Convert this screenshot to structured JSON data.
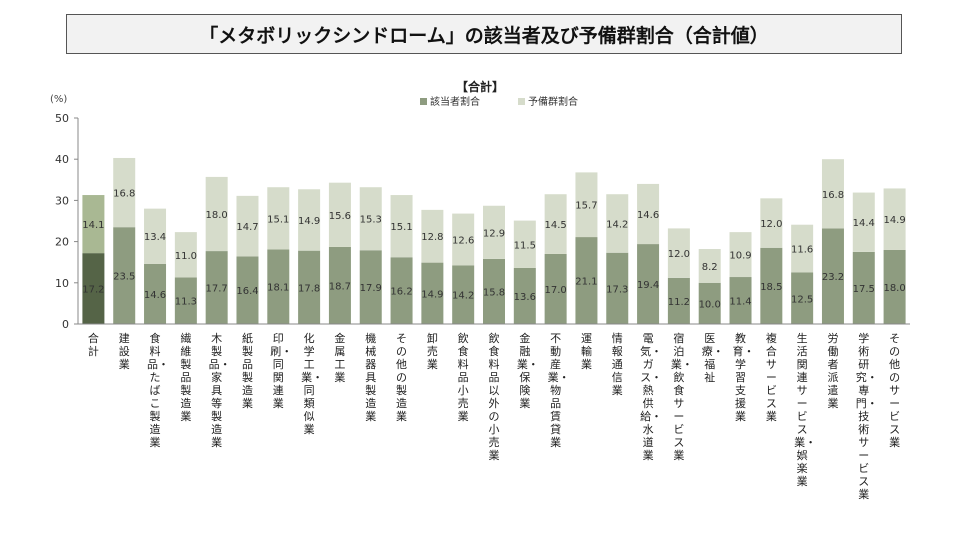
{
  "slide_title": "「メタボリックシンドローム」の該当者及び予備群割合（合計値）",
  "chart_data": {
    "type": "bar",
    "stacked": true,
    "title": "【合計】",
    "ylabel": "(%)",
    "ylim": [
      0,
      50
    ],
    "yticks": [
      0,
      10,
      20,
      30,
      40,
      50
    ],
    "grid": false,
    "legend_position": "top",
    "categories": [
      "合計",
      "建設業",
      "食料品・たばこ製造業",
      "繊維製品製造業",
      "木製品・家具等製造業",
      "紙製品製造業",
      "印刷・同関連業",
      "化学工業・同類似業",
      "金属工業",
      "機械器具製造業",
      "その他の製造業",
      "卸売業",
      "飲食料品小売業",
      "飲食料品以外の小売業",
      "金融業・保険業",
      "不動産業・物品賃貸業",
      "運輸業",
      "情報通信業",
      "電気・ガス・熱供給・水道業",
      "宿泊業・飲食サービス業",
      "医療・福祉",
      "教育・学習支援業",
      "複合サービス業",
      "生活関連サービス業・娯楽業",
      "労働者派遣業",
      "学術研究・専門・技術サービス業",
      "その他のサービス業"
    ],
    "series": [
      {
        "name": "該当者割合",
        "color": "#8e9c80",
        "highlight_color": "#556447",
        "values": [
          17.2,
          23.5,
          14.6,
          11.3,
          17.7,
          16.4,
          18.1,
          17.8,
          18.7,
          17.9,
          16.2,
          14.9,
          14.2,
          15.8,
          13.6,
          17.0,
          21.1,
          17.3,
          19.4,
          11.2,
          10.0,
          11.4,
          18.5,
          12.5,
          23.2,
          17.5,
          18.0
        ]
      },
      {
        "name": "予備群割合",
        "color": "#d6dccb",
        "highlight_color": "#a9b893",
        "values": [
          14.1,
          16.8,
          13.4,
          11.0,
          18.0,
          14.7,
          15.1,
          14.9,
          15.6,
          15.3,
          15.1,
          12.8,
          12.6,
          12.9,
          11.5,
          14.5,
          15.7,
          14.2,
          14.6,
          12.0,
          8.2,
          10.9,
          12.0,
          11.6,
          16.8,
          14.4,
          14.9
        ]
      }
    ]
  }
}
